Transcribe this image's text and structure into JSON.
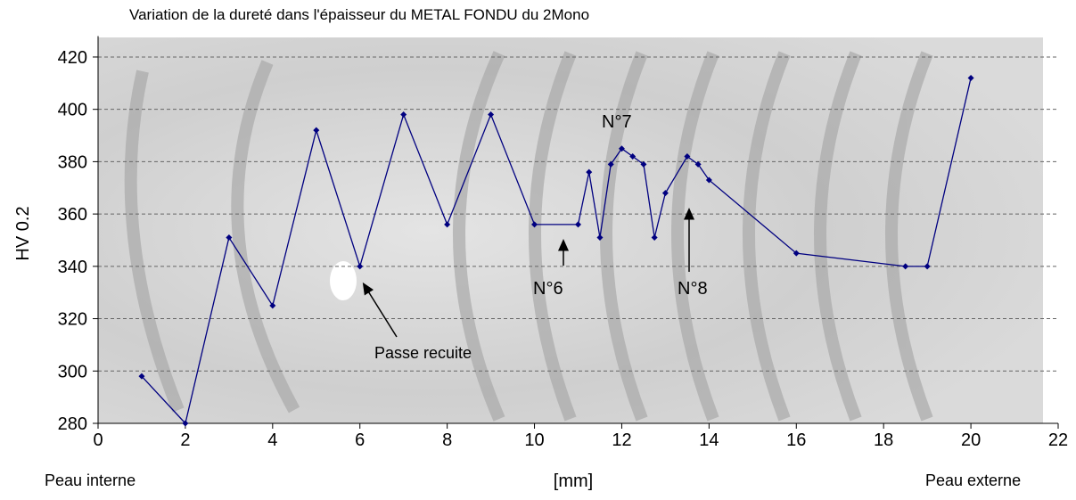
{
  "chart_data": {
    "type": "line",
    "title": "Variation de la dureté dans l'épaisseur du METAL FONDU du 2Mono",
    "x_label": "[mm]",
    "y_label": "HV 0.2",
    "x_end_labels": [
      "Peau interne",
      "Peau externe"
    ],
    "annotations": [
      "N°7",
      "N°6",
      "N°8",
      "Passe recuite"
    ],
    "x": [
      1,
      2,
      3,
      4,
      5,
      6,
      7,
      8,
      9,
      10,
      11,
      11.25,
      11.5,
      11.75,
      12,
      12.25,
      12.5,
      12.75,
      13,
      13.5,
      13.75,
      14,
      16,
      18.5,
      19,
      20
    ],
    "values": [
      298,
      280,
      351,
      325,
      392,
      340,
      398,
      356,
      398,
      356,
      356,
      376,
      351,
      379,
      385,
      382,
      379,
      351,
      368,
      382,
      379,
      373,
      345,
      340,
      340,
      412
    ],
    "color": "#000080",
    "xlim": [
      0,
      22
    ],
    "xticks": [
      0,
      2,
      4,
      6,
      8,
      10,
      12,
      14,
      16,
      18,
      20,
      22
    ],
    "ylim": [
      280,
      428
    ],
    "yticks": [
      280,
      300,
      320,
      340,
      360,
      380,
      400,
      420
    ],
    "grid": true
  }
}
